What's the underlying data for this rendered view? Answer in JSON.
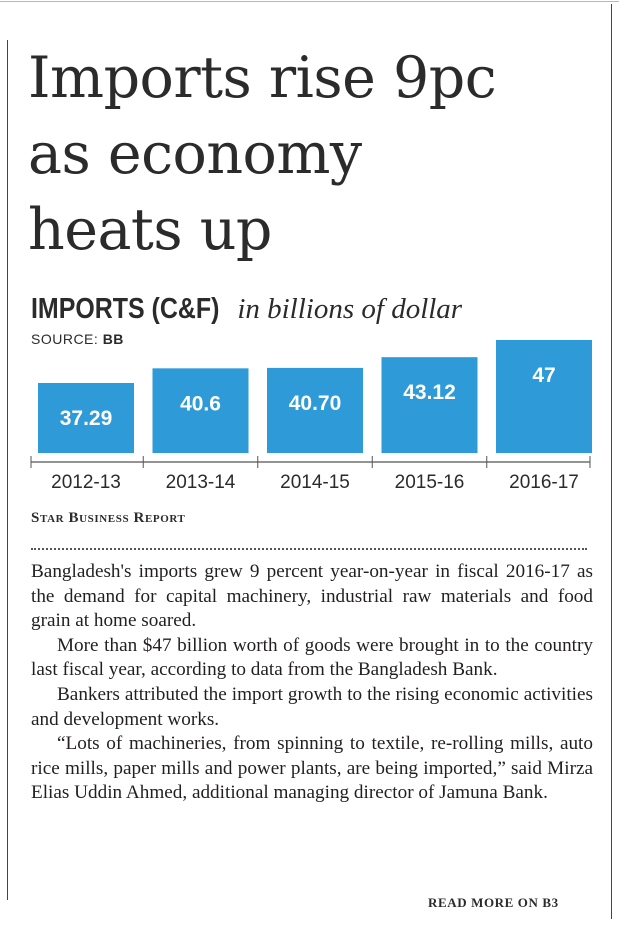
{
  "headline": {
    "line1": "Imports rise 9pc",
    "line2": "as economy",
    "line3": "heats up"
  },
  "chart_header": {
    "title_bold": "IMPORTS (C&F)",
    "title_italic": "in billions of dollar",
    "source_label": "SOURCE:",
    "source_value": "BB"
  },
  "chart_data": {
    "type": "bar",
    "categories": [
      "2012-13",
      "2013-14",
      "2014-15",
      "2015-16",
      "2016-17"
    ],
    "values": [
      37.29,
      40.6,
      40.7,
      43.12,
      47
    ],
    "value_labels": [
      "37.29",
      "40.6",
      "40.70",
      "43.12",
      "47"
    ],
    "title": "IMPORTS (C&F) in billions of dollar",
    "xlabel": "",
    "ylabel": "",
    "ylim": [
      0,
      47
    ],
    "bar_color": "#2e9ad7",
    "label_color": "#ffffff",
    "grid": false
  },
  "byline": "Star Business Report",
  "article": {
    "paragraphs": [
      "Bangladesh's imports grew 9 percent year-on-year in fiscal 2016-17 as the demand for capital machinery, industrial raw materials and food grain at home soared.",
      "More than $47 billion worth of goods were brought in to the country last fiscal year, according to data from the Bangladesh Bank.",
      "Bankers attributed the import growth to the rising economic activities and development works.",
      "“Lots of machineries, from spinning to textile, re-rolling mills, auto rice mills, paper mills and power plants, are being imported,” said Mirza Elias Uddin Ahmed, additional managing director of Jamuna Bank."
    ]
  },
  "readmore": "READ MORE ON B3"
}
